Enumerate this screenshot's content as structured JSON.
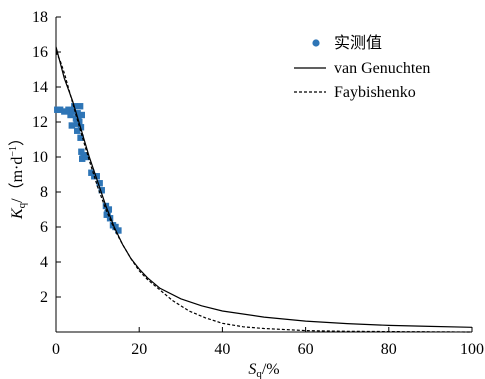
{
  "chart_data": {
    "type": "scatter",
    "xlabel": "S_q/%",
    "ylabel": "K_q/（m·d⁻¹）",
    "xlim": [
      0,
      100
    ],
    "ylim": [
      0,
      18
    ],
    "xticks": [
      0,
      20,
      40,
      60,
      80,
      100
    ],
    "yticks": [
      2,
      4,
      6,
      8,
      10,
      12,
      14,
      16,
      18
    ],
    "grid": false,
    "legend_position": "top-right",
    "series": [
      {
        "name": "实测值",
        "kind": "markers",
        "color": "#2e75b6",
        "points": [
          [
            0.3,
            12.7
          ],
          [
            1.0,
            12.7
          ],
          [
            2.0,
            12.6
          ],
          [
            3.0,
            12.7
          ],
          [
            3.5,
            12.4
          ],
          [
            4.0,
            12.6
          ],
          [
            4.4,
            12.9
          ],
          [
            4.8,
            12.2
          ],
          [
            5.0,
            11.9
          ],
          [
            5.2,
            12.5
          ],
          [
            5.4,
            12.3
          ],
          [
            5.6,
            12.0
          ],
          [
            5.8,
            12.9
          ],
          [
            6.0,
            11.7
          ],
          [
            6.2,
            12.4
          ],
          [
            3.8,
            11.8
          ],
          [
            5.1,
            11.5
          ],
          [
            5.9,
            11.1
          ],
          [
            6.1,
            10.3
          ],
          [
            6.3,
            9.9
          ],
          [
            6.6,
            10.1
          ],
          [
            7.2,
            10.0
          ],
          [
            8.5,
            9.1
          ],
          [
            9.2,
            8.9
          ],
          [
            9.8,
            8.9
          ],
          [
            10.5,
            8.5
          ],
          [
            11.0,
            8.1
          ],
          [
            12.0,
            7.2
          ],
          [
            12.4,
            6.8
          ],
          [
            12.7,
            7.0
          ],
          [
            12.2,
            6.7
          ],
          [
            13.0,
            6.5
          ],
          [
            13.7,
            6.1
          ],
          [
            14.3,
            6.0
          ],
          [
            15.0,
            5.8
          ]
        ]
      },
      {
        "name": "van Genuchten",
        "kind": "solid-line",
        "color": "#000000",
        "points": [
          [
            0,
            16.3
          ],
          [
            2,
            14.5
          ],
          [
            4,
            13.2
          ],
          [
            6,
            11.6
          ],
          [
            8,
            10.0
          ],
          [
            10,
            8.6
          ],
          [
            12,
            7.2
          ],
          [
            14,
            6.0
          ],
          [
            16,
            5.0
          ],
          [
            18,
            4.2
          ],
          [
            20,
            3.6
          ],
          [
            22,
            3.1
          ],
          [
            25,
            2.5
          ],
          [
            30,
            1.9
          ],
          [
            35,
            1.5
          ],
          [
            40,
            1.2
          ],
          [
            50,
            0.85
          ],
          [
            60,
            0.62
          ],
          [
            70,
            0.48
          ],
          [
            80,
            0.38
          ],
          [
            90,
            0.32
          ],
          [
            100,
            0.27
          ]
        ]
      },
      {
        "name": "Faybishenko",
        "kind": "dashed-line",
        "color": "#000000",
        "points": [
          [
            0,
            16.0
          ],
          [
            1,
            15.5
          ],
          [
            2,
            14.8
          ],
          [
            4,
            13.1
          ],
          [
            6,
            11.4
          ],
          [
            8,
            9.8
          ],
          [
            10,
            8.3
          ],
          [
            12,
            7.0
          ],
          [
            14,
            5.9
          ],
          [
            16,
            5.0
          ],
          [
            18,
            4.2
          ],
          [
            20,
            3.5
          ],
          [
            22,
            3.0
          ],
          [
            25,
            2.4
          ],
          [
            28,
            1.8
          ],
          [
            32,
            1.2
          ],
          [
            36,
            0.8
          ],
          [
            40,
            0.5
          ],
          [
            45,
            0.3
          ],
          [
            50,
            0.2
          ],
          [
            60,
            0.08
          ],
          [
            70,
            0.04
          ],
          [
            80,
            0.02
          ],
          [
            90,
            0.01
          ],
          [
            100,
            0.0
          ]
        ]
      }
    ]
  }
}
